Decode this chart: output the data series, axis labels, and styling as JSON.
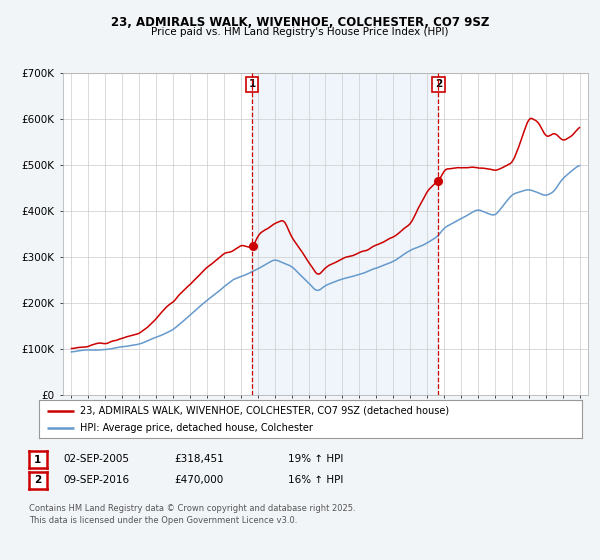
{
  "title": "23, ADMIRALS WALK, WIVENHOE, COLCHESTER, CO7 9SZ",
  "subtitle": "Price paid vs. HM Land Registry's House Price Index (HPI)",
  "legend_line1": "23, ADMIRALS WALK, WIVENHOE, COLCHESTER, CO7 9SZ (detached house)",
  "legend_line2": "HPI: Average price, detached house, Colchester",
  "annotation1_label": "1",
  "annotation1_date": "02-SEP-2005",
  "annotation1_price": "£318,451",
  "annotation1_hpi": "19% ↑ HPI",
  "annotation1_year": 2005.67,
  "annotation2_label": "2",
  "annotation2_date": "09-SEP-2016",
  "annotation2_price": "£470,000",
  "annotation2_hpi": "16% ↑ HPI",
  "annotation2_year": 2016.67,
  "price_color": "#cc0000",
  "hpi_color": "#6699cc",
  "background_color": "#f2f5f8",
  "plot_bg_color": "#ffffff",
  "grid_color": "#cccccc",
  "footer_text": "Contains HM Land Registry data © Crown copyright and database right 2025.\nThis data is licensed under the Open Government Licence v3.0.",
  "ylim": [
    0,
    700000
  ],
  "yticks": [
    0,
    100000,
    200000,
    300000,
    400000,
    500000,
    600000,
    700000
  ],
  "ytick_labels": [
    "£0",
    "£100K",
    "£200K",
    "£300K",
    "£400K",
    "£500K",
    "£600K",
    "£700K"
  ],
  "xlim_start": 1994.5,
  "xlim_end": 2025.5
}
